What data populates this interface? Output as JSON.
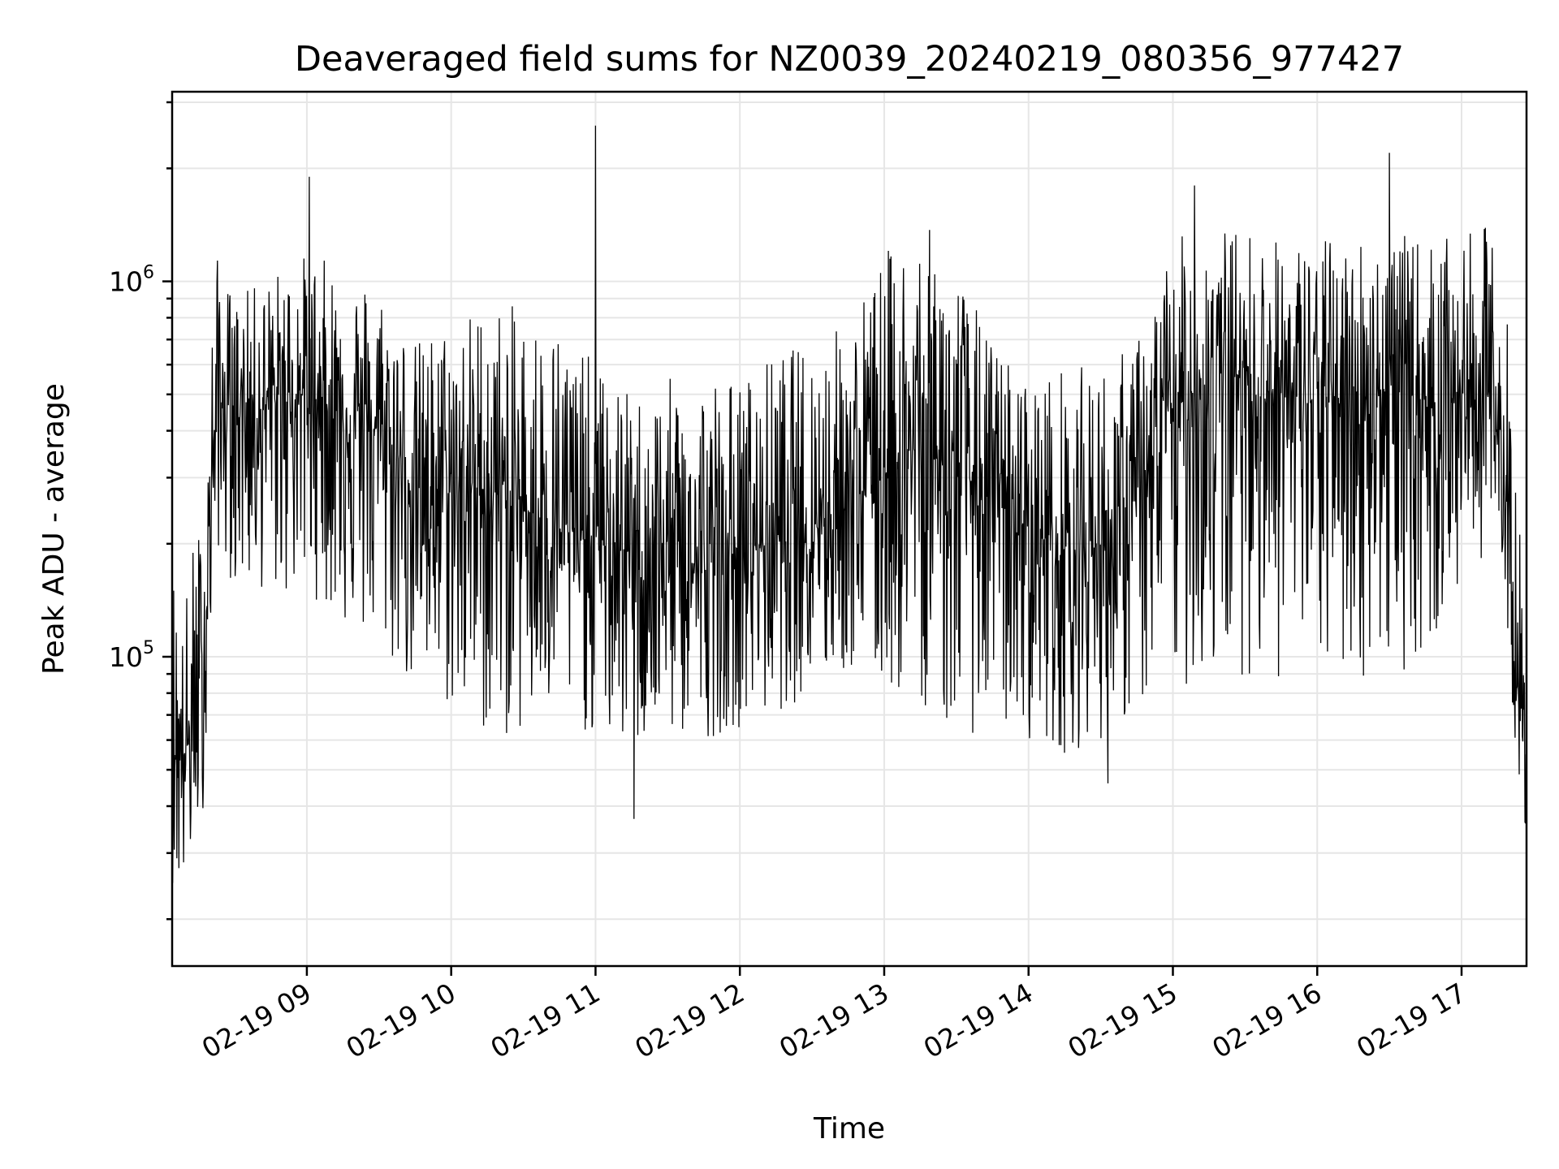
{
  "chart_data": {
    "type": "line",
    "title": "Deaveraged field sums for NZ0039_20240219_080356_977427",
    "xlabel": "Time",
    "ylabel": "Peak ADU - average",
    "yscale": "log",
    "grid": true,
    "x_tick_labels": [
      "02-19 09",
      "02-19 10",
      "02-19 11",
      "02-19 12",
      "02-19 13",
      "02-19 14",
      "02-19 15",
      "02-19 16",
      "02-19 17"
    ],
    "y_tick_labels": [
      {
        "base": "10",
        "exp": "6"
      },
      {
        "base": "10",
        "exp": "5"
      }
    ],
    "x": [
      "2024-02-19 08:04",
      "2024-02-19 08:08",
      "2024-02-19 08:12",
      "2024-02-19 08:17",
      "2024-02-19 08:22",
      "2024-02-19 08:30",
      "2024-02-19 08:40",
      "2024-02-19 08:50",
      "2024-02-19 09:00",
      "2024-02-19 09:15",
      "2024-02-19 09:30",
      "2024-02-19 09:45",
      "2024-02-19 10:00",
      "2024-02-19 10:15",
      "2024-02-19 10:30",
      "2024-02-19 10:45",
      "2024-02-19 11:00",
      "2024-02-19 11:15",
      "2024-02-19 11:30",
      "2024-02-19 11:45",
      "2024-02-19 12:00",
      "2024-02-19 12:15",
      "2024-02-19 12:30",
      "2024-02-19 12:45",
      "2024-02-19 13:00",
      "2024-02-19 13:15",
      "2024-02-19 13:30",
      "2024-02-19 13:45",
      "2024-02-19 14:00",
      "2024-02-19 14:15",
      "2024-02-19 14:30",
      "2024-02-19 14:45",
      "2024-02-19 15:00",
      "2024-02-19 15:15",
      "2024-02-19 15:30",
      "2024-02-19 15:45",
      "2024-02-19 16:00",
      "2024-02-19 16:15",
      "2024-02-19 16:30",
      "2024-02-19 16:45",
      "2024-02-19 17:00",
      "2024-02-19 17:12",
      "2024-02-19 17:18",
      "2024-02-19 17:23",
      "2024-02-19 17:27"
    ],
    "y_center": [
      60000,
      55000,
      60000,
      90000,
      450000,
      480000,
      450000,
      500000,
      500000,
      450000,
      400000,
      280000,
      280000,
      280000,
      250000,
      220000,
      200000,
      190000,
      180000,
      170000,
      190000,
      210000,
      230000,
      260000,
      320000,
      360000,
      320000,
      260000,
      220000,
      190000,
      200000,
      260000,
      450000,
      560000,
      560000,
      500000,
      470000,
      500000,
      520000,
      480000,
      500000,
      500000,
      300000,
      80000,
      50000
    ],
    "y_high": [
      200000,
      120000,
      200000,
      250000,
      1200000,
      900000,
      1000000,
      1100000,
      1200000,
      1100000,
      1000000,
      700000,
      800000,
      900000,
      850000,
      800000,
      600000,
      500000,
      550000,
      600000,
      550000,
      650000,
      700000,
      800000,
      1200000,
      1500000,
      1100000,
      700000,
      550000,
      600000,
      600000,
      700000,
      1300000,
      1400000,
      1400000,
      1300000,
      1300000,
      1350000,
      1350000,
      1300000,
      1300000,
      1450000,
      1000000,
      350000,
      90000
    ],
    "y_low": [
      25000,
      22000,
      28000,
      40000,
      200000,
      150000,
      150000,
      140000,
      150000,
      120000,
      100000,
      80000,
      70000,
      60000,
      60000,
      70000,
      60000,
      55000,
      60000,
      60000,
      65000,
      70000,
      80000,
      90000,
      80000,
      75000,
      60000,
      65000,
      60000,
      55000,
      60000,
      70000,
      80000,
      85000,
      90000,
      85000,
      90000,
      85000,
      90000,
      95000,
      150000,
      200000,
      150000,
      50000,
      32000
    ],
    "spikes": [
      {
        "x": "2024-02-19 09:01",
        "y": 1900000
      },
      {
        "x": "2024-02-19 11:00",
        "y": 2600000
      },
      {
        "x": "2024-02-19 11:16",
        "y": 37000
      },
      {
        "x": "2024-02-19 14:33",
        "y": 46000
      },
      {
        "x": "2024-02-19 15:09",
        "y": 1800000
      },
      {
        "x": "2024-02-19 16:30",
        "y": 2200000
      },
      {
        "x": "2024-02-19 08:03",
        "y": 22000
      }
    ],
    "xlim": [
      "2024-02-19 08:04",
      "2024-02-19 17:27"
    ],
    "ylim": [
      15000,
      3200000
    ]
  }
}
